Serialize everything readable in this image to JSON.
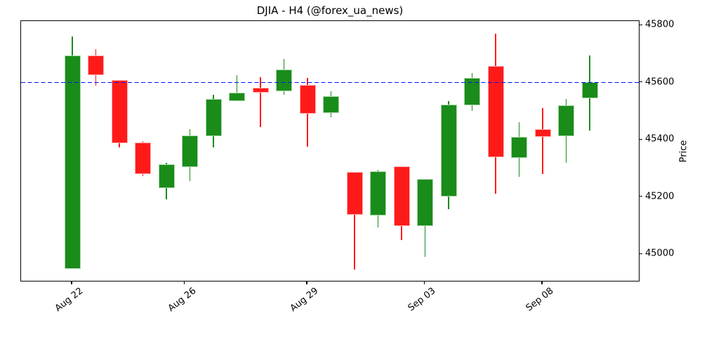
{
  "figure": {
    "title": "DJIA - H4 (@forex_ua_news)"
  },
  "chart_data": {
    "type": "candlestick",
    "symbol": "DJIA",
    "timeframe": "H4",
    "source_handle": "@forex_ua_news",
    "title": "DJIA - H4 (@forex_ua_news)",
    "xlabel": "",
    "ylabel": "Price",
    "grid": false,
    "legend_position": "none",
    "ylim": [
      44903,
      45815
    ],
    "y_ticks": [
      45800,
      45600,
      45400,
      45200,
      45000
    ],
    "x_ticks": [
      {
        "label": "Aug 22",
        "pos": 0
      },
      {
        "label": "Aug 26",
        "pos": 4.8
      },
      {
        "label": "Aug 29",
        "pos": 10
      },
      {
        "label": "Sep 03",
        "pos": 15
      },
      {
        "label": "Sep 08",
        "pos": 20
      }
    ],
    "hline": {
      "value": 45600,
      "color": "#0010ff",
      "style": "dashed"
    },
    "colors": {
      "up": "#1a8c1a",
      "up_edge": "#a9d8a9",
      "down": "#ff1a1a",
      "down_edge": "#ffb0b0",
      "axis": "#000000",
      "background": "#ffffff"
    },
    "candles": [
      {
        "open": 44950,
        "high": 45760,
        "low": 44950,
        "close": 45695
      },
      {
        "open": 45696,
        "high": 45718,
        "low": 45589,
        "close": 45627
      },
      {
        "open": 45610,
        "high": 45610,
        "low": 45374,
        "close": 45389
      },
      {
        "open": 45390,
        "high": 45397,
        "low": 45272,
        "close": 45280
      },
      {
        "open": 45232,
        "high": 45320,
        "low": 45192,
        "close": 45315
      },
      {
        "open": 45306,
        "high": 45437,
        "low": 45257,
        "close": 45415
      },
      {
        "open": 45414,
        "high": 45557,
        "low": 45373,
        "close": 45543
      },
      {
        "open": 45536,
        "high": 45627,
        "low": 45536,
        "close": 45565
      },
      {
        "open": 45581,
        "high": 45618,
        "low": 45446,
        "close": 45565
      },
      {
        "open": 45569,
        "high": 45683,
        "low": 45557,
        "close": 45645
      },
      {
        "open": 45593,
        "high": 45616,
        "low": 45377,
        "close": 45491
      },
      {
        "open": 45494,
        "high": 45571,
        "low": 45479,
        "close": 45553
      },
      {
        "open": 45287,
        "high": 45287,
        "low": 44947,
        "close": 45139
      },
      {
        "open": 45136,
        "high": 45295,
        "low": 45095,
        "close": 45290
      },
      {
        "open": 45308,
        "high": 45308,
        "low": 45049,
        "close": 45099
      },
      {
        "open": 45098,
        "high": 45263,
        "low": 44991,
        "close": 45263
      },
      {
        "open": 45201,
        "high": 45535,
        "low": 45159,
        "close": 45524
      },
      {
        "open": 45520,
        "high": 45634,
        "low": 45500,
        "close": 45616
      },
      {
        "open": 45659,
        "high": 45771,
        "low": 45212,
        "close": 45340
      },
      {
        "open": 45336,
        "high": 45463,
        "low": 45271,
        "close": 45410
      },
      {
        "open": 45437,
        "high": 45512,
        "low": 45281,
        "close": 45410
      },
      {
        "open": 45412,
        "high": 45544,
        "low": 45320,
        "close": 45522
      },
      {
        "open": 45545,
        "high": 45694,
        "low": 45432,
        "close": 45602
      }
    ]
  }
}
